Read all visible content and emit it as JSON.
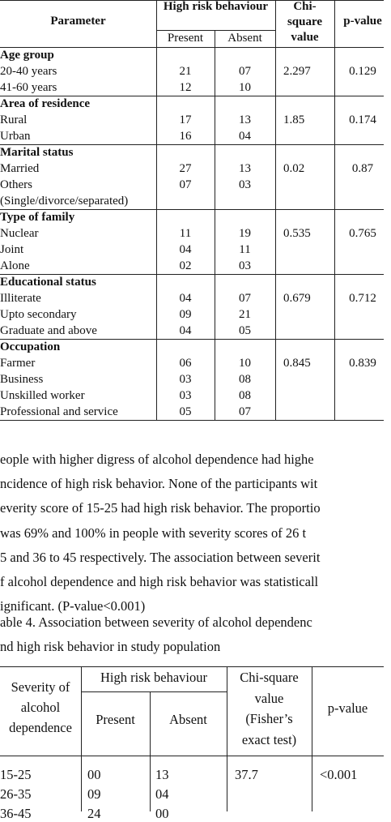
{
  "table1": {
    "headers": {
      "parameter": "Parameter",
      "group": "High risk behaviour",
      "present": "Present",
      "absent": "Absent",
      "chi": [
        "Chi-",
        "square",
        "value"
      ],
      "p": "p-value"
    },
    "groups": [
      {
        "title": "Age group",
        "rows": [
          [
            "20-40 years",
            "21",
            "07",
            "2.297",
            "0.129"
          ],
          [
            "41-60 years",
            "12",
            "10",
            "",
            ""
          ]
        ]
      },
      {
        "title": "Area of residence",
        "rows": [
          [
            "Rural",
            "17",
            "13",
            "1.85",
            "0.174"
          ],
          [
            "Urban",
            "16",
            "04",
            "",
            ""
          ]
        ]
      },
      {
        "title": "Marital status",
        "rows": [
          [
            "Married",
            "27",
            "13",
            "0.02",
            "0.87"
          ],
          [
            "Others",
            "07",
            "03",
            "",
            ""
          ],
          [
            "(Single/divorce/separated)",
            "",
            "",
            "",
            ""
          ]
        ]
      },
      {
        "title": "Type of family",
        "rows": [
          [
            "Nuclear",
            "11",
            "19",
            "0.535",
            "0.765"
          ],
          [
            "Joint",
            "04",
            "11",
            "",
            ""
          ],
          [
            "Alone",
            "02",
            "03",
            "",
            ""
          ]
        ]
      },
      {
        "title": "Educational status",
        "rows": [
          [
            "Illiterate",
            "04",
            "07",
            "0.679",
            "0.712"
          ],
          [
            "Upto secondary",
            "09",
            "21",
            "",
            ""
          ],
          [
            "Graduate and above",
            "04",
            "05",
            "",
            ""
          ]
        ]
      },
      {
        "title": "Occupation",
        "rows": [
          [
            "Farmer",
            "06",
            "10",
            "0.845",
            "0.839"
          ],
          [
            "Business",
            "03",
            "08",
            "",
            ""
          ],
          [
            "Unskilled worker",
            "03",
            "08",
            "",
            ""
          ],
          [
            "Professional and service",
            "05",
            "07",
            "",
            ""
          ]
        ]
      }
    ]
  },
  "paragraph": [
    "eople with higher digress of alcohol dependence had highe",
    "ncidence of high risk behavior. None of the participants wit",
    "everity score of 15-25 had high risk behavior. The proportio",
    "was 69% and 100% in people with severity scores of 26 t",
    "5 and 36 to 45 respectively. The association between severit",
    "f alcohol dependence and high risk behavior was statisticall",
    "ignificant. (P-value<0.001)"
  ],
  "caption": [
    "able 4. Association between severity of alcohol dependenc",
    "nd high risk behavior in study population"
  ],
  "table2": {
    "headers": {
      "severity": [
        "Severity of",
        "alcohol",
        "dependence"
      ],
      "group": "High risk behaviour",
      "present": "Present",
      "absent": "Absent",
      "chi": [
        "Chi-square",
        "value",
        "(Fisher’s",
        "exact test)"
      ],
      "p": "p-value"
    },
    "rows": [
      [
        "15-25",
        "00",
        "13",
        "37.7",
        "<0.001"
      ],
      [
        "26-35",
        "09",
        "04",
        "",
        ""
      ],
      [
        "36-45",
        "24",
        "00",
        "",
        ""
      ]
    ]
  }
}
